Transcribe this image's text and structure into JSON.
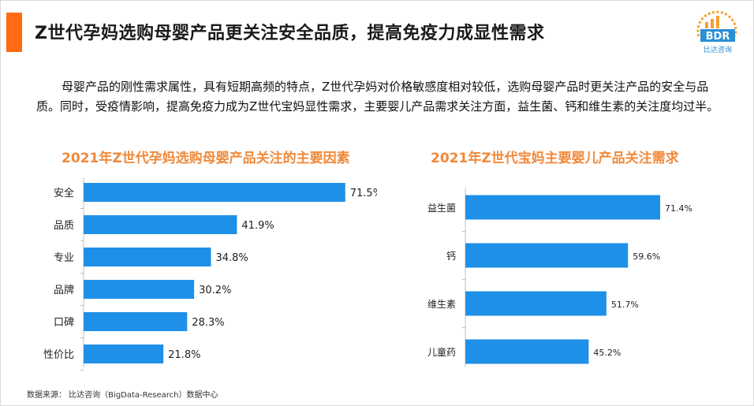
{
  "header": {
    "title": "Z世代孕妈选购母婴产品更关注安全品质，提高免疫力成显性需求",
    "logo_text": "BDR",
    "logo_sub": "比达咨询"
  },
  "description": "母婴产品的刚性需求属性，具有短期高频的特点，Z世代孕妈对价格敏感度相对较低，选购母婴产品时更关注产品的安全与品质。同时，受疫情影响，提高免疫力成为Z世代宝妈显性需求，主要婴儿产品需求关注方面，益生菌、钙和维生素的关注度均过半。",
  "colors": {
    "bar": "#1e90e8",
    "accent": "#ff6a13",
    "chart_title": "#f08a3c"
  },
  "chart_data": [
    {
      "type": "bar",
      "orientation": "horizontal",
      "title": "2021年Z世代孕妈选购母婴产品关注的主要因素",
      "categories": [
        "安全",
        "品质",
        "专业",
        "品牌",
        "口碑",
        "性价比"
      ],
      "values": [
        71.5,
        41.9,
        34.8,
        30.2,
        28.3,
        21.8
      ],
      "value_labels": [
        "71.5%",
        "41.9%",
        "34.8%",
        "30.2%",
        "28.3%",
        "21.8%"
      ],
      "unit": "%",
      "xlim": [
        0,
        100
      ],
      "grid": false
    },
    {
      "type": "bar",
      "orientation": "horizontal",
      "title": "2021年Z世代宝妈主要婴儿产品关注需求",
      "categories": [
        "益生菌",
        "钙",
        "维生素",
        "儿童药"
      ],
      "values": [
        71.4,
        59.6,
        51.7,
        45.2
      ],
      "value_labels": [
        "71.4%",
        "59.6%",
        "51.7%",
        "45.2%"
      ],
      "unit": "%",
      "xlim": [
        0,
        100
      ],
      "grid": false
    }
  ],
  "source": "数据来源：  比达咨询（BigData-Research）数据中心"
}
